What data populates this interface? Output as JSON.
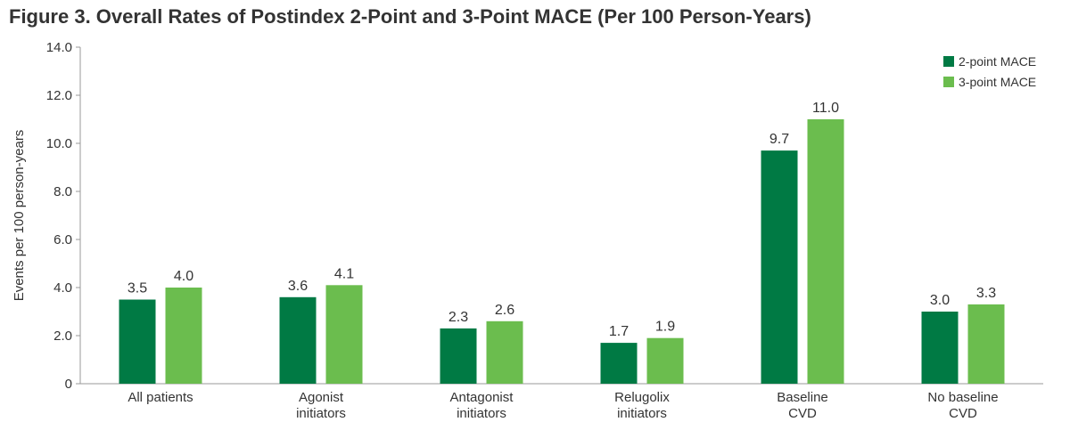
{
  "chart_data": {
    "type": "bar",
    "title": "Figure 3. Overall Rates of Postindex 2-Point and 3-Point MACE (Per 100 Person-Years)",
    "xlabel": "",
    "ylabel": "Events per 100 person-years",
    "ylim": [
      0,
      14
    ],
    "yticks": [
      "0",
      "2.0",
      "4.0",
      "6.0",
      "8.0",
      "10.0",
      "12.0",
      "14.0"
    ],
    "categories": [
      [
        "All patients"
      ],
      [
        "Agonist",
        "initiators"
      ],
      [
        "Antagonist",
        "initiators"
      ],
      [
        "Relugolix",
        "initiators"
      ],
      [
        "Baseline",
        "CVD"
      ],
      [
        "No baseline",
        "CVD"
      ]
    ],
    "series": [
      {
        "name": "2-point MACE",
        "color": "#007a44",
        "values": [
          3.5,
          3.6,
          2.3,
          1.7,
          9.7,
          3.0
        ],
        "labels": [
          "3.5",
          "3.6",
          "2.3",
          "1.7",
          "9.7",
          "3.0"
        ]
      },
      {
        "name": "3-point MACE",
        "color": "#6bbd4e",
        "values": [
          4.0,
          4.1,
          2.6,
          1.9,
          11.0,
          3.3
        ],
        "labels": [
          "4.0",
          "4.1",
          "2.6",
          "1.9",
          "11.0",
          "3.3"
        ]
      }
    ],
    "legend_position": "top-right",
    "grid": false
  }
}
